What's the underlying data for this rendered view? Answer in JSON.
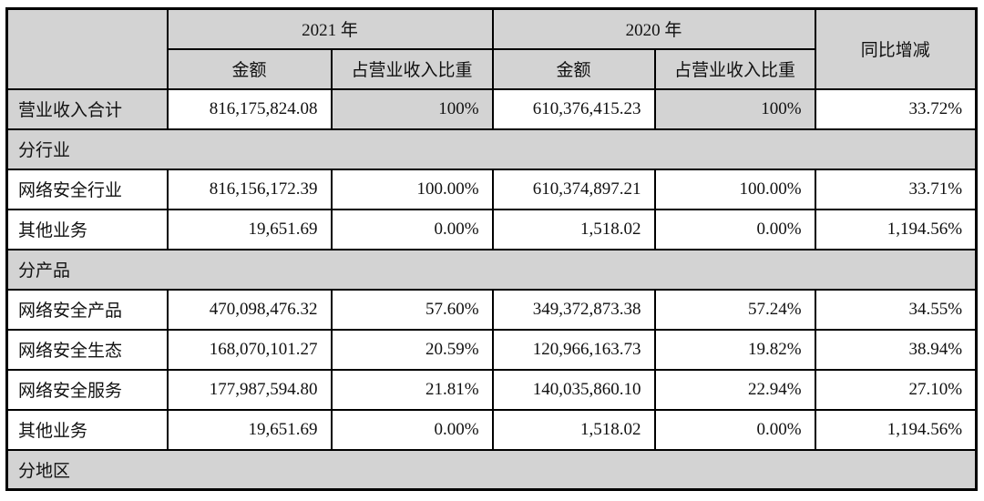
{
  "colors": {
    "shaded_bg": "#d3d3d3",
    "border": "#000000",
    "text": "#111111"
  },
  "table": {
    "header": {
      "corner": "",
      "year_2021": "2021 年",
      "year_2020": "2020 年",
      "yoy": "同比增减",
      "amount": "金额",
      "share": "占营业收入比重"
    },
    "rows": [
      {
        "type": "data",
        "shaded": true,
        "label": "营业收入合计",
        "amount_2021": "816,175,824.08",
        "share_2021": "100%",
        "amount_2020": "610,376,415.23",
        "share_2020": "100%",
        "yoy": "33.72%"
      },
      {
        "type": "section",
        "label": "分行业"
      },
      {
        "type": "data",
        "shaded": false,
        "label": "网络安全行业",
        "amount_2021": "816,156,172.39",
        "share_2021": "100.00%",
        "amount_2020": "610,374,897.21",
        "share_2020": "100.00%",
        "yoy": "33.71%"
      },
      {
        "type": "data",
        "shaded": false,
        "label": "其他业务",
        "amount_2021": "19,651.69",
        "share_2021": "0.00%",
        "amount_2020": "1,518.02",
        "share_2020": "0.00%",
        "yoy": "1,194.56%"
      },
      {
        "type": "section",
        "label": "分产品"
      },
      {
        "type": "data",
        "shaded": false,
        "label": "网络安全产品",
        "amount_2021": "470,098,476.32",
        "share_2021": "57.60%",
        "amount_2020": "349,372,873.38",
        "share_2020": "57.24%",
        "yoy": "34.55%"
      },
      {
        "type": "data",
        "shaded": false,
        "label": "网络安全生态",
        "amount_2021": "168,070,101.27",
        "share_2021": "20.59%",
        "amount_2020": "120,966,163.73",
        "share_2020": "19.82%",
        "yoy": "38.94%"
      },
      {
        "type": "data",
        "shaded": false,
        "label": "网络安全服务",
        "amount_2021": "177,987,594.80",
        "share_2021": "21.81%",
        "amount_2020": "140,035,860.10",
        "share_2020": "22.94%",
        "yoy": "27.10%"
      },
      {
        "type": "data",
        "shaded": false,
        "label": "其他业务",
        "amount_2021": "19,651.69",
        "share_2021": "0.00%",
        "amount_2020": "1,518.02",
        "share_2020": "0.00%",
        "yoy": "1,194.56%"
      },
      {
        "type": "section",
        "label": "分地区"
      }
    ]
  }
}
